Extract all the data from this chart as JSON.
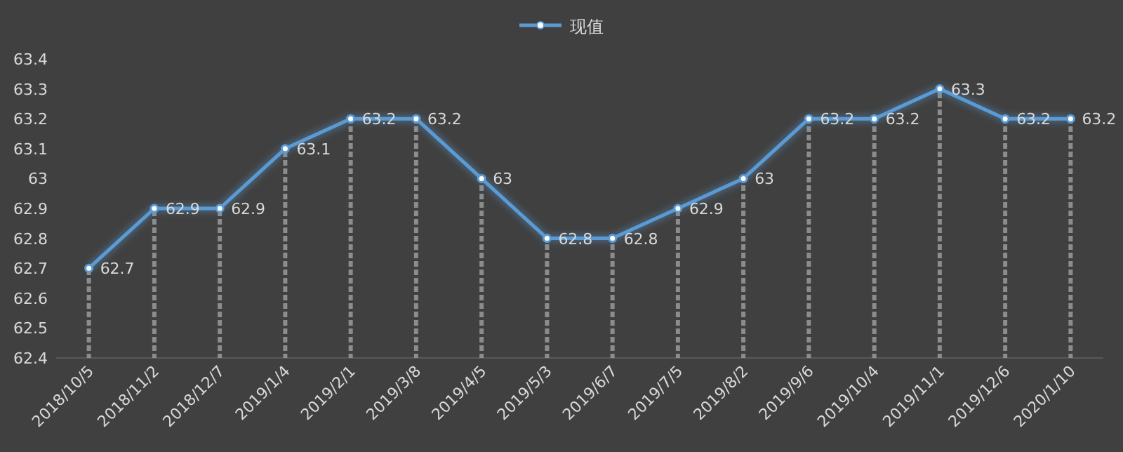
{
  "chart_data": {
    "type": "line",
    "categories": [
      "2018/10/5",
      "2018/11/2",
      "2018/12/7",
      "2019/1/4",
      "2019/2/1",
      "2019/3/8",
      "2019/4/5",
      "2019/5/3",
      "2019/6/7",
      "2019/7/5",
      "2019/8/2",
      "2019/9/6",
      "2019/10/4",
      "2019/11/1",
      "2019/12/6",
      "2020/1/10"
    ],
    "series": [
      {
        "type": "bar",
        "color": "#a6a6a6",
        "values": [
          62.7,
          62.9,
          62.9,
          63.1,
          63.2,
          63.2,
          63,
          62.8,
          62.8,
          62.9,
          63,
          63.2,
          63.2,
          63.3,
          63.2,
          63.2
        ]
      },
      {
        "name": "现值",
        "color": "#5b9bd5",
        "value_labels": [
          "62.7",
          "62.9",
          "62.9",
          "63.1",
          "63.2",
          "63.2",
          "63",
          "62.8",
          "62.8",
          "62.9",
          "63",
          "63.2",
          "63.2",
          "63.3",
          "63.2",
          "63.2"
        ],
        "values": [
          62.7,
          62.9,
          62.9,
          63.1,
          63.2,
          63.2,
          63,
          62.8,
          62.8,
          62.9,
          63,
          63.2,
          63.2,
          63.3,
          63.2,
          63.2
        ]
      }
    ],
    "ylim": [
      62.4,
      63.4
    ],
    "yticks": [
      62.4,
      62.5,
      62.6,
      62.7,
      62.8,
      62.9,
      63,
      63.1,
      63.2,
      63.3,
      63.4
    ],
    "legend": "top",
    "marker": "circle",
    "grid": false
  }
}
